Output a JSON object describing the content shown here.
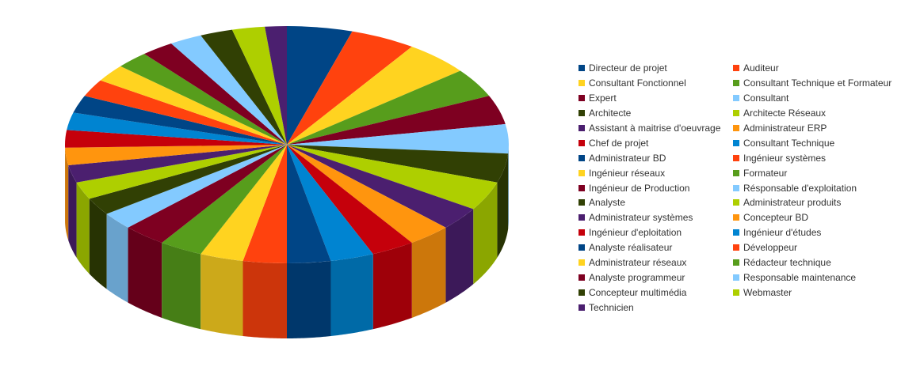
{
  "chart_data": {
    "type": "pie",
    "style": "3d-cylinder",
    "legend_position": "right",
    "slices": [
      {
        "label": "Directeur de projet",
        "value": 6,
        "color": "#004586"
      },
      {
        "label": "Auditeur",
        "value": 6,
        "color": "#ff420e"
      },
      {
        "label": "Consultant Fonctionnel",
        "value": 6,
        "color": "#ffd320"
      },
      {
        "label": "Consultant Technique et Formateur",
        "value": 5,
        "color": "#579d1c"
      },
      {
        "label": "Expert",
        "value": 5,
        "color": "#7e0021"
      },
      {
        "label": "Consultant",
        "value": 5,
        "color": "#83caff"
      },
      {
        "label": "Architecte",
        "value": 5,
        "color": "#314004"
      },
      {
        "label": "Architecte Réseaux",
        "value": 5,
        "color": "#aecf00"
      },
      {
        "label": "Assistant à maitrise d'oeuvrage",
        "value": 4,
        "color": "#4b1f6f"
      },
      {
        "label": "Administrateur ERP",
        "value": 4,
        "color": "#ff950e"
      },
      {
        "label": "Chef de projet",
        "value": 4,
        "color": "#c5000b"
      },
      {
        "label": "Consultant Technique",
        "value": 4,
        "color": "#0084d1"
      },
      {
        "label": "Administrateur BD",
        "value": 4,
        "color": "#004586"
      },
      {
        "label": "Ingénieur systèmes",
        "value": 4,
        "color": "#ff420e"
      },
      {
        "label": "Ingénieur réseaux",
        "value": 4,
        "color": "#ffd320"
      },
      {
        "label": "Formateur",
        "value": 4,
        "color": "#579d1c"
      },
      {
        "label": "Ingénieur de Production",
        "value": 4,
        "color": "#7e0021"
      },
      {
        "label": "Résponsable d'exploitation",
        "value": 3,
        "color": "#83caff"
      },
      {
        "label": "Analyste",
        "value": 3,
        "color": "#314004"
      },
      {
        "label": "Administrateur produits",
        "value": 3,
        "color": "#aecf00"
      },
      {
        "label": "Administrateur systèmes",
        "value": 3,
        "color": "#4b1f6f"
      },
      {
        "label": "Concepteur BD",
        "value": 3,
        "color": "#ff950e"
      },
      {
        "label": "Ingénieur d'eploitation",
        "value": 3,
        "color": "#c5000b"
      },
      {
        "label": "Ingénieur d'études",
        "value": 3,
        "color": "#0084d1"
      },
      {
        "label": "Analyste réalisateur",
        "value": 3,
        "color": "#004586"
      },
      {
        "label": "Développeur",
        "value": 3,
        "color": "#ff420e"
      },
      {
        "label": "Administrateur réseaux",
        "value": 3,
        "color": "#ffd320"
      },
      {
        "label": "Rédacteur technique",
        "value": 3,
        "color": "#579d1c"
      },
      {
        "label": "Analyste programmeur",
        "value": 3,
        "color": "#7e0021"
      },
      {
        "label": "Responsable maintenance",
        "value": 3,
        "color": "#83caff"
      },
      {
        "label": "Concepteur multimédia",
        "value": 3,
        "color": "#314004"
      },
      {
        "label": "Webmaster",
        "value": 3,
        "color": "#aecf00"
      },
      {
        "label": "Technicien",
        "value": 2,
        "color": "#4b1f6f"
      }
    ]
  }
}
